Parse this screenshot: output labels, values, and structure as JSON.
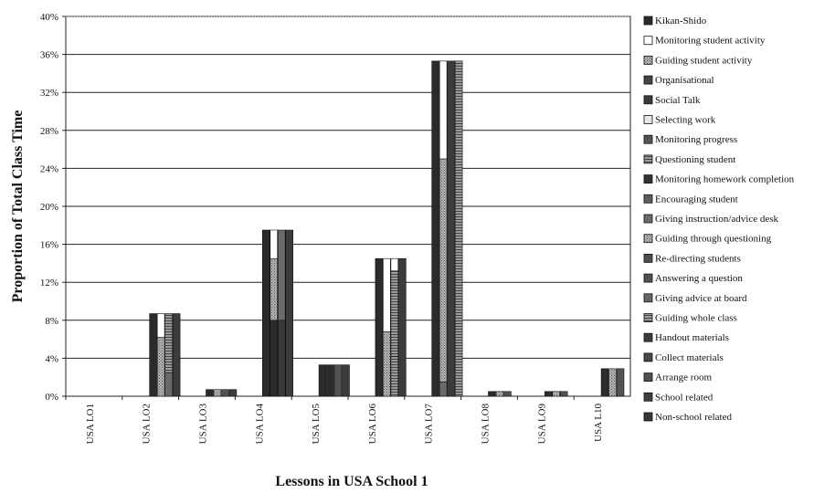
{
  "chart_data": {
    "type": "bar",
    "subtype": "stacked-clustered",
    "ylabel": "Proportion of Total Class Time",
    "xlabel": "Lessons in USA School 1",
    "ylim": [
      0,
      40
    ],
    "yticks": [
      "0%",
      "4%",
      "8%",
      "12%",
      "16%",
      "20%",
      "24%",
      "28%",
      "32%",
      "36%",
      "40%"
    ],
    "grid": true,
    "legend_position": "right",
    "categories": [
      "USA LO1",
      "USA LO2",
      "USA LO3",
      "USA LO4",
      "USA LO5",
      "USA LO6",
      "USA LO7",
      "USA LO8",
      "USA LO9",
      "USA L10"
    ],
    "bars_per_category": 4,
    "stacks": [
      [
        [],
        [],
        [],
        []
      ],
      [
        [
          {
            "s": 0,
            "v": 8.7
          }
        ],
        [
          {
            "s": 2,
            "v": 6.2
          },
          {
            "s": 1,
            "v": 2.5
          }
        ],
        [
          {
            "s": 10,
            "v": 2.5
          },
          {
            "s": 15,
            "v": 6.2
          }
        ],
        [
          {
            "s": 16,
            "v": 8.7
          }
        ]
      ],
      [
        [
          {
            "s": 0,
            "v": 0.7
          }
        ],
        [
          {
            "s": 2,
            "v": 0.7
          }
        ],
        [
          {
            "s": 13,
            "v": 0.7
          }
        ],
        [
          {
            "s": 16,
            "v": 0.7
          }
        ]
      ],
      [
        [
          {
            "s": 0,
            "v": 17.5
          }
        ],
        [
          {
            "s": 0,
            "v": 8.0
          },
          {
            "s": 2,
            "v": 6.5
          },
          {
            "s": 1,
            "v": 3.0
          }
        ],
        [
          {
            "s": 4,
            "v": 8.0
          },
          {
            "s": 10,
            "v": 9.5
          }
        ],
        [
          {
            "s": 16,
            "v": 17.5
          }
        ]
      ],
      [
        [
          {
            "s": 0,
            "v": 3.3
          }
        ],
        [
          {
            "s": 0,
            "v": 3.3
          }
        ],
        [
          {
            "s": 13,
            "v": 3.3
          }
        ],
        [
          {
            "s": 16,
            "v": 3.3
          }
        ]
      ],
      [
        [
          {
            "s": 0,
            "v": 14.5
          }
        ],
        [
          {
            "s": 2,
            "v": 6.8
          },
          {
            "s": 1,
            "v": 7.7
          }
        ],
        [
          {
            "s": 7,
            "v": 4.2
          },
          {
            "s": 15,
            "v": 9.0
          },
          {
            "s": 1,
            "v": 1.3
          }
        ],
        [
          {
            "s": 16,
            "v": 14.5
          }
        ]
      ],
      [
        [
          {
            "s": 0,
            "v": 35.3
          }
        ],
        [
          {
            "s": 10,
            "v": 1.5
          },
          {
            "s": 2,
            "v": 23.5
          },
          {
            "s": 1,
            "v": 10.3
          }
        ],
        [
          {
            "s": 16,
            "v": 35.3
          }
        ],
        [
          {
            "s": 15,
            "v": 35.3
          }
        ]
      ],
      [
        [
          {
            "s": 0,
            "v": 0.5
          }
        ],
        [
          {
            "s": 2,
            "v": 0.5
          }
        ],
        [
          {
            "s": 13,
            "v": 0.5
          }
        ],
        []
      ],
      [
        [
          {
            "s": 0,
            "v": 0.5
          }
        ],
        [
          {
            "s": 2,
            "v": 0.5
          }
        ],
        [
          {
            "s": 13,
            "v": 0.5
          }
        ],
        []
      ],
      [
        [
          {
            "s": 0,
            "v": 2.9
          }
        ],
        [
          {
            "s": 2,
            "v": 2.9
          }
        ],
        [
          {
            "s": 13,
            "v": 2.9
          }
        ],
        []
      ]
    ],
    "series": [
      {
        "name": "Kikan-Shido",
        "color": "#2b2b2b"
      },
      {
        "name": "Monitoring student activity",
        "color": "#ffffff"
      },
      {
        "name": "Guiding student activity",
        "color": "#a8a8a8",
        "pattern": "dots"
      },
      {
        "name": "Organisational",
        "color": "#444444"
      },
      {
        "name": "Social Talk",
        "color": "#3a3a3a"
      },
      {
        "name": "Selecting work",
        "color": "#e6e6e6"
      },
      {
        "name": "Monitoring progress",
        "color": "#555555"
      },
      {
        "name": "Questioning student",
        "color": "#8a8a8a",
        "pattern": "hatch"
      },
      {
        "name": "Monitoring homework completion",
        "color": "#333333"
      },
      {
        "name": "Encouraging student",
        "color": "#5e5e5e"
      },
      {
        "name": "Giving instruction/advice desk",
        "color": "#6a6a6a"
      },
      {
        "name": "Guiding through questioning",
        "color": "#7a7a7a",
        "pattern": "dots"
      },
      {
        "name": "Re-directing students",
        "color": "#4d4d4d"
      },
      {
        "name": "Answering a question",
        "color": "#525252"
      },
      {
        "name": "Giving advice at board",
        "color": "#666666"
      },
      {
        "name": "Guiding whole class",
        "color": "#5a5a5a",
        "pattern": "hatch"
      },
      {
        "name": "Handout materials",
        "color": "#3c3c3c"
      },
      {
        "name": "Collect materials",
        "color": "#474747"
      },
      {
        "name": "Arrange room",
        "color": "#505050"
      },
      {
        "name": "School related",
        "color": "#404040"
      },
      {
        "name": "Non-school related",
        "color": "#383838"
      }
    ]
  }
}
